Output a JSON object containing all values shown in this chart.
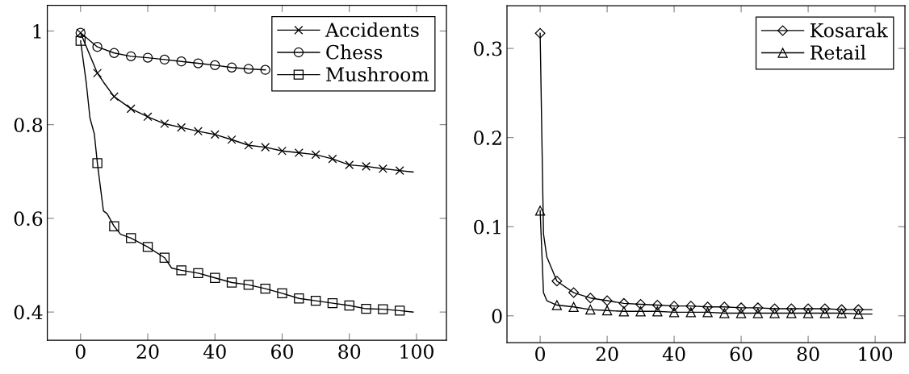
{
  "chart_data": [
    {
      "type": "line",
      "xlim": [
        -9.9,
        108.9
      ],
      "ylim": [
        0.34,
        1.055
      ],
      "xticks": [
        0,
        20,
        40,
        60,
        80,
        100
      ],
      "yticks": [
        0.4,
        0.6,
        0.8,
        1
      ],
      "legend": "top right",
      "grid": false,
      "line_style": "solid",
      "series": [
        {
          "name": "Accidents",
          "color": "#000000",
          "marker": "cross",
          "x": [
            0,
            5,
            7,
            10,
            15,
            20,
            25,
            30,
            35,
            40,
            45,
            50,
            55,
            60,
            65,
            70,
            75,
            80,
            85,
            90,
            95,
            99
          ],
          "values": [
            0.996,
            0.91,
            0.889,
            0.86,
            0.834,
            0.817,
            0.802,
            0.794,
            0.786,
            0.779,
            0.768,
            0.756,
            0.752,
            0.744,
            0.74,
            0.736,
            0.727,
            0.714,
            0.711,
            0.706,
            0.702,
            0.699
          ]
        },
        {
          "name": "Chess",
          "color": "#000000",
          "marker": "circle",
          "x": [
            0,
            5,
            10,
            15,
            20,
            25,
            30,
            35,
            40,
            45,
            50,
            55
          ],
          "values": [
            0.996,
            0.966,
            0.953,
            0.946,
            0.943,
            0.939,
            0.935,
            0.931,
            0.927,
            0.922,
            0.919,
            0.917
          ]
        },
        {
          "name": "Mushroom",
          "color": "#000000",
          "marker": "square",
          "x": [
            0,
            1.7,
            2.8,
            4.1,
            5,
            6.8,
            7.9,
            10,
            11.9,
            15,
            20,
            25,
            27.1,
            30,
            35,
            40,
            45,
            50,
            55,
            60,
            65,
            70,
            75,
            80,
            85,
            90,
            95,
            99
          ],
          "values": [
            0.979,
            0.889,
            0.814,
            0.78,
            0.718,
            0.616,
            0.61,
            0.583,
            0.566,
            0.558,
            0.539,
            0.516,
            0.494,
            0.489,
            0.483,
            0.473,
            0.463,
            0.458,
            0.45,
            0.44,
            0.429,
            0.424,
            0.419,
            0.414,
            0.407,
            0.406,
            0.403,
            0.4
          ]
        }
      ]
    },
    {
      "type": "line",
      "xlim": [
        -9.9,
        108.9
      ],
      "ylim": [
        -0.03,
        0.348
      ],
      "xticks": [
        0,
        20,
        40,
        60,
        80,
        100
      ],
      "yticks": [
        0,
        0.1,
        0.2,
        0.3
      ],
      "legend": "top right",
      "grid": false,
      "line_style": "solid",
      "series": [
        {
          "name": "Kosarak",
          "color": "#000000",
          "marker": "diamond",
          "x": [
            0,
            1,
            2,
            5,
            10,
            15,
            20,
            25,
            30,
            35,
            40,
            45,
            50,
            55,
            60,
            65,
            70,
            75,
            80,
            85,
            90,
            95,
            99
          ],
          "values": [
            0.317,
            0.092,
            0.066,
            0.039,
            0.026,
            0.02,
            0.017,
            0.014,
            0.013,
            0.012,
            0.011,
            0.011,
            0.01,
            0.01,
            0.009,
            0.009,
            0.008,
            0.008,
            0.008,
            0.008,
            0.007,
            0.007,
            0.007
          ]
        },
        {
          "name": "Retail",
          "color": "#000000",
          "marker": "triangle",
          "x": [
            0,
            1,
            2,
            5,
            10,
            15,
            20,
            25,
            30,
            35,
            40,
            45,
            50,
            55,
            60,
            65,
            70,
            75,
            80,
            85,
            90,
            95,
            99
          ],
          "values": [
            0.118,
            0.026,
            0.017,
            0.012,
            0.01,
            0.007,
            0.006,
            0.005,
            0.005,
            0.005,
            0.004,
            0.004,
            0.004,
            0.003,
            0.003,
            0.003,
            0.003,
            0.003,
            0.003,
            0.003,
            0.003,
            0.002,
            0.002
          ]
        }
      ]
    }
  ]
}
